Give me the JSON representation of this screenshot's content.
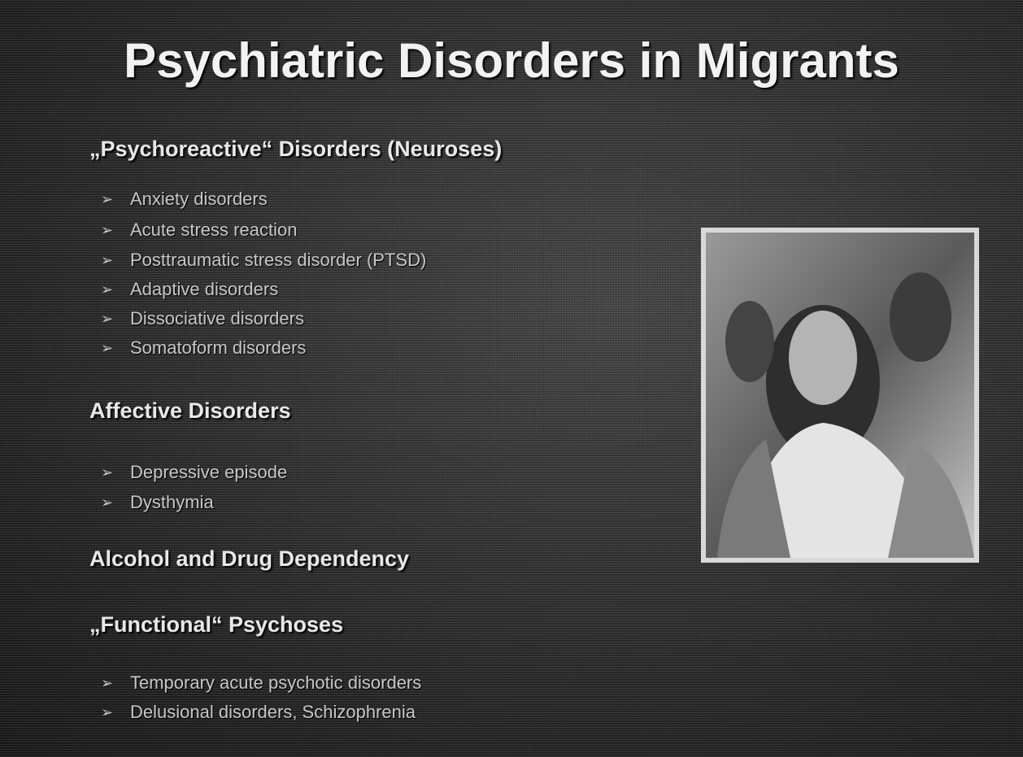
{
  "title": "Psychiatric Disorders in Migrants",
  "sections": [
    {
      "heading": "„Psychoreactive“ Disorders (Neuroses)",
      "items": [
        "Anxiety disorders",
        "Acute stress reaction",
        "Posttraumatic stress disorder (PTSD)",
        "Adaptive disorders",
        "Dissociative disorders",
        "Somatoform disorders"
      ]
    },
    {
      "heading": "Affective Disorders",
      "items": [
        "Depressive episode",
        "Dysthymia"
      ]
    },
    {
      "heading": "Alcohol and Drug Dependency",
      "items": []
    },
    {
      "heading": "„Functional“ Psychoses",
      "items": [
        "Temporary acute psychotic disorders",
        "Delusional disorders, Schizophrenia"
      ]
    }
  ]
}
